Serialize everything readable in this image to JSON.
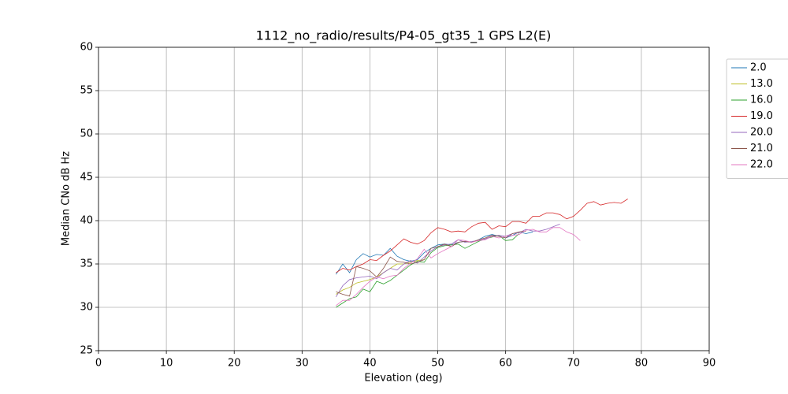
{
  "chart_data": {
    "type": "line",
    "title": "1112_no_radio/results/P4-05_gt35_1 GPS L2(E)",
    "xlabel": "Elevation (deg)",
    "ylabel": "Median CNo dB Hz",
    "xlim": [
      0,
      90
    ],
    "ylim": [
      25,
      60
    ],
    "xticks": [
      0,
      10,
      20,
      30,
      40,
      50,
      60,
      70,
      80,
      90
    ],
    "yticks": [
      25,
      30,
      35,
      40,
      45,
      50,
      55,
      60
    ],
    "grid": true,
    "legend": "outside upper right",
    "x": [
      35,
      36,
      37,
      38,
      39,
      40,
      41,
      42,
      43,
      44,
      45,
      46,
      47,
      48,
      49,
      50,
      51,
      52,
      53,
      54,
      55,
      56,
      57,
      58,
      59,
      60,
      61,
      62,
      63,
      64,
      65,
      66,
      67,
      68,
      69,
      70,
      71,
      72,
      73,
      74,
      75,
      76,
      77,
      78
    ],
    "series": [
      {
        "name": "2.0",
        "color": "#1f77b4",
        "values": [
          33.8,
          35,
          34,
          35.5,
          36.2,
          35.8,
          36.1,
          36,
          36.8,
          35.9,
          35.5,
          35.3,
          35.5,
          36.3,
          36.8,
          37.2,
          37.3,
          37.2,
          37.5,
          37.6,
          37.5,
          37.8,
          38.2,
          38.4,
          38.2,
          38,
          38.3,
          38.7,
          38.5,
          38.7,
          null,
          null,
          null,
          null,
          null,
          null,
          null,
          null,
          null,
          null,
          null,
          null,
          null,
          null
        ]
      },
      {
        "name": "13.0",
        "color": "#bcbd22",
        "values": [
          31.5,
          32,
          32.3,
          32.8,
          33,
          33.2,
          33.5,
          34,
          34.5,
          35,
          35,
          35.2,
          35.4,
          35.5,
          null,
          null,
          null,
          null,
          null,
          null,
          null,
          null,
          null,
          null,
          null,
          null,
          null,
          null,
          null,
          null,
          null,
          null,
          null,
          null,
          null,
          null,
          null,
          null,
          null,
          null,
          null,
          null,
          null,
          null
        ]
      },
      {
        "name": "16.0",
        "color": "#2ca02c",
        "values": [
          30,
          30.5,
          31,
          31.2,
          32.1,
          31.8,
          33,
          32.7,
          33.1,
          33.7,
          34.3,
          34.9,
          35.3,
          35.2,
          36.3,
          36.9,
          37.1,
          37.2,
          37.3,
          36.8,
          37.2,
          37.6,
          37.9,
          38.1,
          38.3,
          37.7,
          37.8,
          38.5,
          null,
          null,
          null,
          null,
          null,
          null,
          null,
          null,
          null,
          null,
          null,
          null,
          null,
          null,
          null,
          null
        ]
      },
      {
        "name": "19.0",
        "color": "#d62728",
        "values": [
          34.0,
          34.5,
          34.3,
          34.7,
          35.0,
          35.5,
          35.4,
          36.0,
          36.5,
          37.2,
          37.9,
          37.5,
          37.3,
          37.7,
          38.6,
          39.2,
          39.0,
          38.7,
          38.8,
          38.7,
          39.3,
          39.7,
          39.8,
          39.0,
          39.4,
          39.3,
          39.9,
          39.9,
          39.7,
          40.5,
          40.5,
          40.9,
          40.9,
          40.7,
          40.2,
          40.5,
          41.2,
          42.0,
          42.2,
          41.8,
          42.0,
          42.1,
          42.0,
          42.5
        ]
      },
      {
        "name": "20.0",
        "color": "#9467bd",
        "values": [
          31.2,
          32.5,
          33.2,
          33.4,
          33.5,
          33.6,
          33.3,
          34,
          34.5,
          34.3,
          35,
          35.4,
          35.1,
          35.8,
          36.5,
          37,
          37.2,
          37.3,
          37.8,
          37.5,
          37.6,
          37.7,
          37.9,
          38.2,
          38.3,
          38.2,
          38.5,
          38.6,
          39,
          38.8,
          38.8,
          39,
          39.3,
          39.6,
          null,
          null,
          null,
          null,
          null,
          null,
          null,
          null,
          null,
          null
        ]
      },
      {
        "name": "21.0",
        "color": "#8c564b",
        "values": [
          31.8,
          31.5,
          31.3,
          34.7,
          34.5,
          34.2,
          33.5,
          34.5,
          35.8,
          35.3,
          35.2,
          35.0,
          35.2,
          35.5,
          36.8,
          37,
          37.3,
          37,
          37.5,
          37.6,
          37.5,
          37.8,
          38,
          38.3,
          38.2,
          38,
          38.5,
          38.7,
          38.8,
          null,
          null,
          null,
          null,
          null,
          null,
          null,
          null,
          null,
          null,
          null,
          null,
          null,
          null,
          null
        ]
      },
      {
        "name": "22.0",
        "color": "#e377c2",
        "values": [
          30.2,
          30.8,
          30.8,
          31.5,
          32.3,
          33,
          33.5,
          33.3,
          33.6,
          33.7,
          34.5,
          35.1,
          35.6,
          36.7,
          35.7,
          36.2,
          36.6,
          37.0,
          37.8,
          37.7,
          37.5,
          37.7,
          37.8,
          38.2,
          38,
          38.2,
          38.3,
          38.4,
          38.9,
          39,
          38.7,
          38.7,
          39.2,
          39.2,
          38.7,
          38.4,
          37.7,
          null,
          null,
          null,
          null,
          null,
          null,
          null
        ]
      }
    ]
  }
}
